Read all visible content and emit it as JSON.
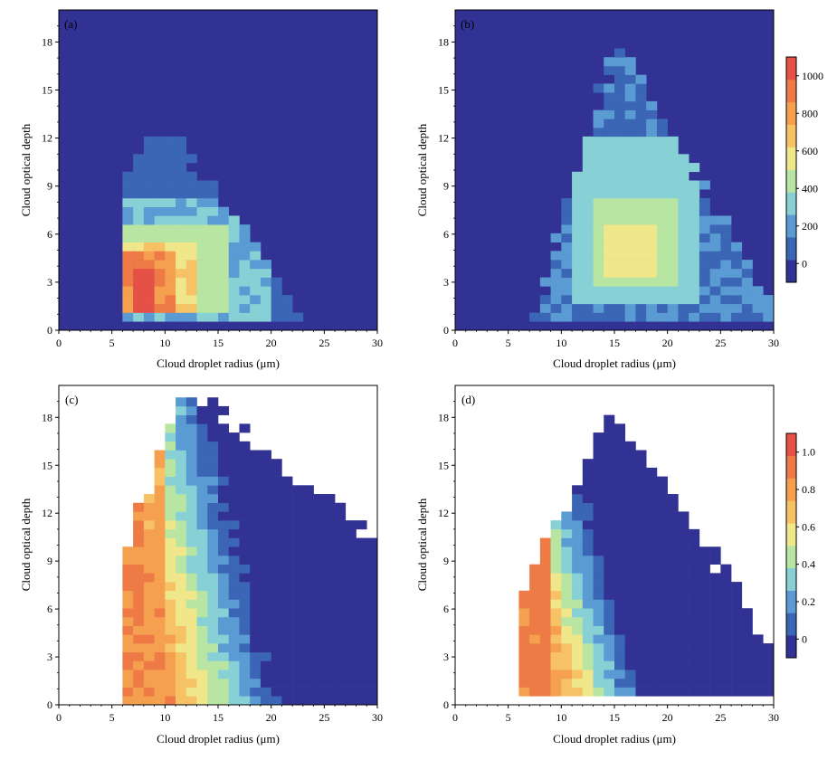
{
  "chart_data": [
    {
      "type": "heatmap",
      "panel_label": "(a)",
      "xlabel": "Cloud droplet radius (μm)",
      "ylabel": "Cloud optical depth",
      "xlim": [
        0,
        30
      ],
      "ylim": [
        0,
        20
      ],
      "xticks": [
        0,
        5,
        10,
        15,
        20,
        25,
        30
      ],
      "yticks": [
        0,
        3,
        6,
        9,
        12,
        15,
        18
      ],
      "colorscale": "counts",
      "background": "#323294",
      "cell_size": [
        1,
        0.55
      ],
      "regions": [
        {
          "xr": [
            6,
            23
          ],
          "yr": [
            0.5,
            12
          ],
          "value": 100
        },
        {
          "xr": [
            6,
            20
          ],
          "yr": [
            0.8,
            8
          ],
          "value": 260
        },
        {
          "xr": [
            6.5,
            16
          ],
          "yr": [
            1,
            6.5
          ],
          "value": 420
        },
        {
          "xr": [
            6.5,
            13
          ],
          "yr": [
            1.2,
            5.5
          ],
          "value": 620
        },
        {
          "xr": [
            6.5,
            11.5
          ],
          "yr": [
            1.2,
            4.8
          ],
          "value": 850
        },
        {
          "xr": [
            6.8,
            8.8
          ],
          "yr": [
            1.2,
            3.8
          ],
          "value": 1050
        }
      ]
    },
    {
      "type": "heatmap",
      "panel_label": "(b)",
      "xlabel": "Cloud droplet radius (μm)",
      "ylabel": "Cloud optical depth",
      "xlim": [
        0,
        30
      ],
      "ylim": [
        0,
        20
      ],
      "xticks": [
        0,
        5,
        10,
        15,
        20,
        25,
        30
      ],
      "yticks": [
        0,
        3,
        6,
        9,
        12,
        15,
        18
      ],
      "colorscale": "counts",
      "background": "#323294",
      "cell_size": [
        1,
        0.55
      ],
      "regions": [
        {
          "xr": [
            7,
            30
          ],
          "yr": [
            0.6,
            18.5
          ],
          "value": 140
        },
        {
          "xr": [
            11,
            23
          ],
          "yr": [
            1.5,
            12
          ],
          "value": 300
        },
        {
          "xr": [
            13,
            21
          ],
          "yr": [
            2.5,
            8
          ],
          "value": 440
        },
        {
          "xr": [
            14,
            19
          ],
          "yr": [
            3.5,
            6.5
          ],
          "value": 560
        }
      ]
    },
    {
      "type": "heatmap",
      "panel_label": "(c)",
      "xlabel": "Cloud droplet radius (μm)",
      "ylabel": "Cloud optical depth",
      "xlim": [
        0,
        30
      ],
      "ylim": [
        0,
        20
      ],
      "xticks": [
        0,
        5,
        10,
        15,
        20,
        25,
        30
      ],
      "yticks": [
        0,
        3,
        6,
        9,
        12,
        15,
        18
      ],
      "colorscale": "ratio",
      "background": "#ffffff",
      "cell_size": [
        1,
        0.55
      ],
      "boundary": "upper-left diagonal from (6, 9.5) to (12, 20) and (30, 10); lower edge at 0",
      "value_trend": "decreases with radius: ~0.9 at 6–8 μm, ~0.8 at 10 μm, ~0.5 at 12 μm, ~0.2 at 16 μm, ~0 beyond 20 μm at high optical depth"
    },
    {
      "type": "heatmap",
      "panel_label": "(d)",
      "xlabel": "Cloud droplet radius (μm)",
      "ylabel": "Cloud optical depth",
      "xlim": [
        0,
        30
      ],
      "ylim": [
        0,
        20
      ],
      "xticks": [
        0,
        5,
        10,
        15,
        20,
        25,
        30
      ],
      "yticks": [
        0,
        3,
        6,
        9,
        12,
        15,
        18
      ],
      "colorscale": "ratio",
      "background": "#ffffff",
      "cell_size": [
        1,
        0.55
      ],
      "boundary": "upper-left diagonal from (6, 6.5) to (15, 18.5) and (30, 3); lower edge at ~0.7",
      "value_trend": "decreases with radius: ~0.9 at 6–9 μm, ~0.7 at 11 μm, ~0.4 at 13 μm, ~0.1 at 15 μm, ~0 beyond 17 μm"
    }
  ],
  "colorbars": [
    {
      "name": "counts",
      "ticks": [
        "0",
        "200",
        "400",
        "600",
        "800",
        "1000"
      ],
      "tick_values": [
        0,
        200,
        400,
        600,
        800,
        1000
      ],
      "range": [
        -100,
        1100
      ],
      "colors": [
        "#323294",
        "#3b65b5",
        "#5b9bd4",
        "#86d0d6",
        "#b8e6a2",
        "#f0e68a",
        "#f7c266",
        "#f5a04f",
        "#ee7a45",
        "#e55047"
      ]
    },
    {
      "name": "ratio",
      "ticks": [
        "0",
        "0.2",
        "0.4",
        "0.6",
        "0.8",
        "1.0"
      ],
      "tick_values": [
        0,
        0.2,
        0.4,
        0.6,
        0.8,
        1.0
      ],
      "range": [
        -0.1,
        1.1
      ],
      "colors": [
        "#323294",
        "#3b65b5",
        "#5b9bd4",
        "#86d0d6",
        "#b8e6a2",
        "#f0e68a",
        "#f7c266",
        "#f5a04f",
        "#ee7a45",
        "#e55047"
      ]
    }
  ]
}
